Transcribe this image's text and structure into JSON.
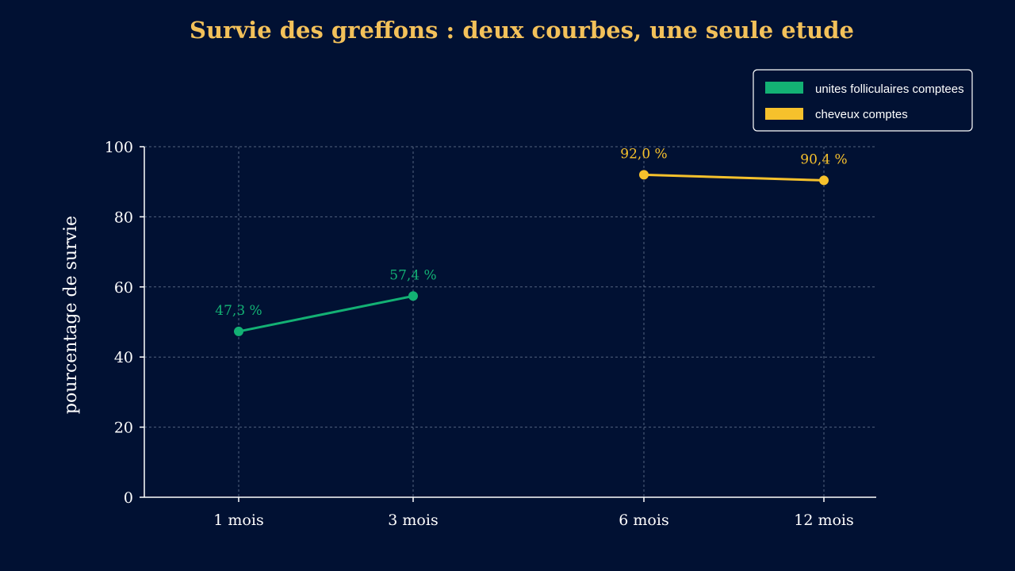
{
  "chart_data": {
    "type": "line",
    "title": "Survie des greffons : deux courbes, une seule etude",
    "xlabel": "",
    "ylabel": "pourcentage de survie",
    "categories": [
      "1 mois",
      "3 mois",
      "6 mois",
      "12 mois"
    ],
    "x_months": [
      1,
      3,
      6,
      12
    ],
    "ylim": [
      0,
      100
    ],
    "yticks": [
      0,
      20,
      40,
      60,
      80,
      100
    ],
    "grid": true,
    "legend_position": "top-right",
    "series": [
      {
        "name": "unites folliculaires comptees",
        "color": "#13b174",
        "points": [
          {
            "category": "1 mois",
            "value": 47.3,
            "label": "47,3 %"
          },
          {
            "category": "3 mois",
            "value": 57.4,
            "label": "57,4 %"
          }
        ]
      },
      {
        "name": "cheveux comptes",
        "color": "#f6c12c",
        "points": [
          {
            "category": "6 mois",
            "value": 92.0,
            "label": "92,0 %"
          },
          {
            "category": "12 mois",
            "value": 90.4,
            "label": "90,4 %"
          }
        ]
      }
    ]
  },
  "colors": {
    "background": "#011133",
    "title": "#f3c15a",
    "axis": "#ffffff",
    "grid": "#6f7e99"
  }
}
